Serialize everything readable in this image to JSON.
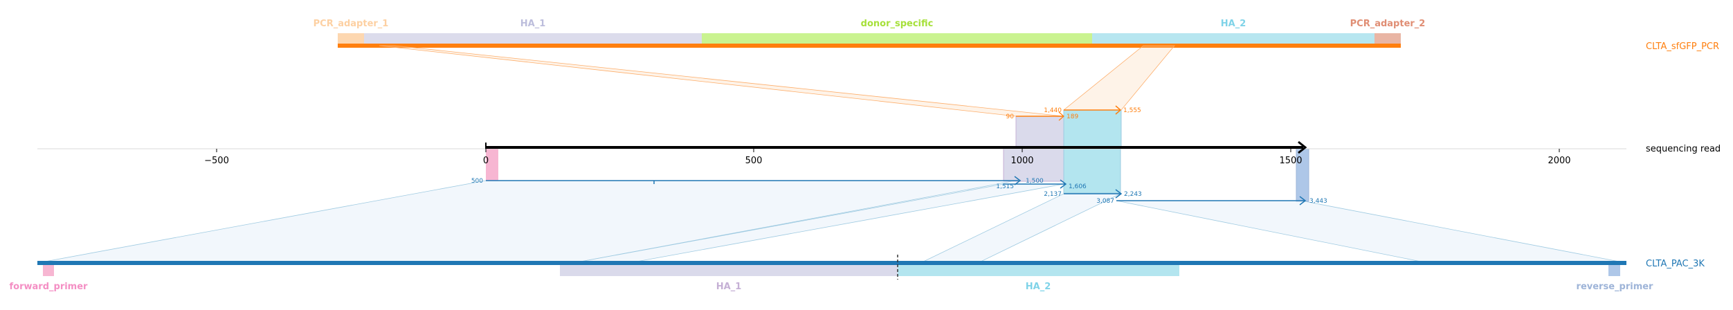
{
  "tracks": {
    "top": {
      "name": "CLTA_sfGFP_PCR",
      "color": "#ff7f0e"
    },
    "middle": {
      "name": "sequencing read",
      "color": "#000000"
    },
    "bottom": {
      "name": "CLTA_PAC_3K",
      "color": "#1f77b4"
    }
  },
  "axis": {
    "ticks": [
      -500,
      0,
      500,
      1000,
      1500,
      2000
    ],
    "tick_labels": [
      "−500",
      "0",
      "500",
      "1000",
      "1500",
      "2000"
    ],
    "range": [
      -830,
      2120
    ]
  },
  "top_features": [
    {
      "name": "PCR_adapter_1",
      "color": "#fdd0a2",
      "label_color": "#fdd0a2"
    },
    {
      "name": "HA_1",
      "color": "#dadaeb",
      "label_color": "#bcbddc"
    },
    {
      "name": "donor_specific",
      "color": "#c7f28a",
      "label_color": "#a6e03a"
    },
    {
      "name": "HA_2",
      "color": "#b3e5ef",
      "label_color": "#7fd3e8"
    },
    {
      "name": "PCR_adapter_2",
      "color": "#e7ad9a",
      "label_color": "#e08e74"
    }
  ],
  "bottom_features": [
    {
      "name": "forward_primer",
      "color": "#f7b6d2",
      "label_color": "#f48fc4"
    },
    {
      "name": "HA_1",
      "color": "#dadaeb",
      "label_color": "#c5b0d5"
    },
    {
      "name": "HA_2",
      "color": "#b3e5ef",
      "label_color": "#7fd3e8"
    },
    {
      "name": "reverse_primer",
      "color": "#aec7e8",
      "label_color": "#9eb4d8"
    }
  ],
  "top_alignment": {
    "labels": [
      "1,440",
      "90",
      "189",
      "1,555"
    ],
    "color": "#ff7f0e"
  },
  "bottom_alignments": [
    {
      "start_label": "500",
      "end_label": "1,500"
    },
    {
      "start_label": "1,515",
      "end_label": "1,606"
    },
    {
      "start_label": "2,137",
      "end_label": "2,243"
    },
    {
      "start_label": "3,087",
      "end_label": "3,443"
    }
  ],
  "bottom_alignment_color": "#1f77b4"
}
